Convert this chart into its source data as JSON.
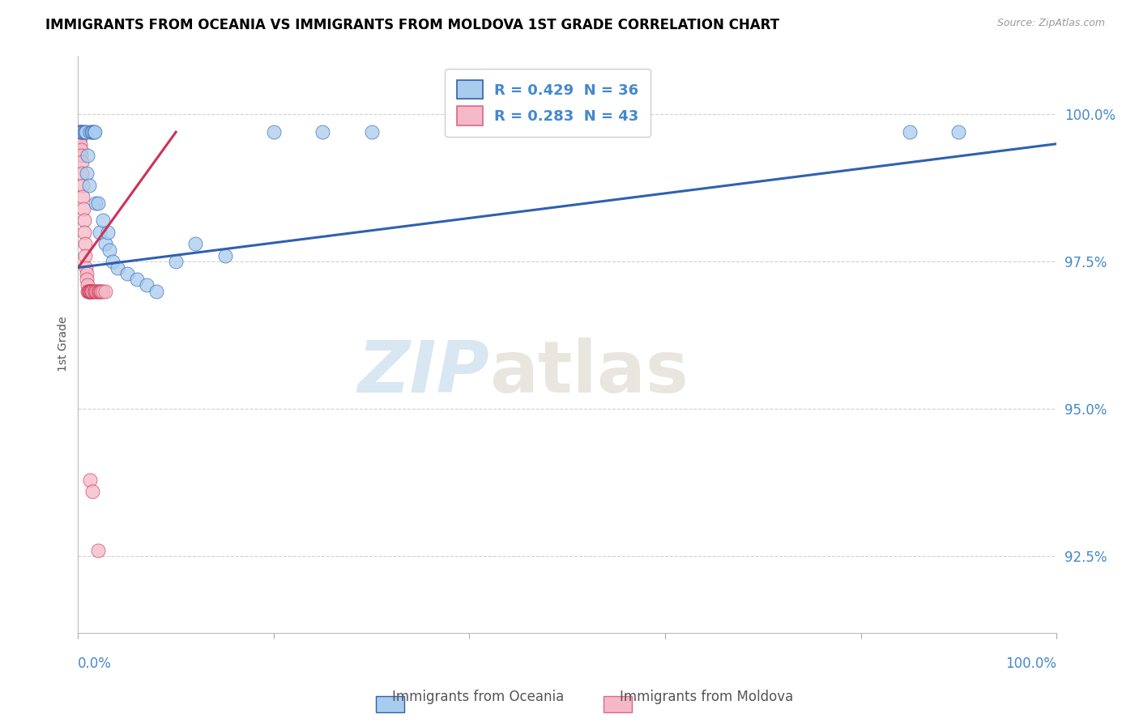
{
  "title": "IMMIGRANTS FROM OCEANIA VS IMMIGRANTS FROM MOLDOVA 1ST GRADE CORRELATION CHART",
  "source": "Source: ZipAtlas.com",
  "ylabel": "1st Grade",
  "legend_oceania": "Immigrants from Oceania",
  "legend_moldova": "Immigrants from Moldova",
  "R_oceania": 0.429,
  "N_oceania": 36,
  "R_moldova": 0.283,
  "N_moldova": 43,
  "color_oceania": "#a8ccee",
  "color_moldova": "#f5b8c8",
  "color_trendline_oceania": "#3060b0",
  "color_trendline_moldova": "#cc3355",
  "xmin": 0.0,
  "xmax": 100.0,
  "ymin": 91.2,
  "ymax": 101.0,
  "yticks": [
    92.5,
    95.0,
    97.5,
    100.0
  ],
  "ytick_labels": [
    "92.5%",
    "95.0%",
    "97.5%",
    "100.0%"
  ],
  "watermark_zip": "ZIP",
  "watermark_atlas": "atlas",
  "oceania_x": [
    0.2,
    0.3,
    0.4,
    0.5,
    0.6,
    0.7,
    0.8,
    0.9,
    1.0,
    1.1,
    1.2,
    1.4,
    1.5,
    1.6,
    1.7,
    1.8,
    2.0,
    2.2,
    2.5,
    2.8,
    3.0,
    3.2,
    3.5,
    4.0,
    5.0,
    6.0,
    7.0,
    8.0,
    10.0,
    12.0,
    15.0,
    20.0,
    25.0,
    30.0,
    85.0,
    90.0
  ],
  "oceania_y": [
    99.7,
    99.7,
    99.7,
    99.7,
    99.7,
    99.7,
    99.7,
    99.0,
    99.3,
    98.8,
    99.7,
    99.7,
    99.7,
    99.7,
    99.7,
    98.5,
    98.5,
    98.0,
    98.2,
    97.8,
    98.0,
    97.7,
    97.5,
    97.4,
    97.3,
    97.2,
    97.1,
    97.0,
    97.5,
    97.8,
    97.6,
    99.7,
    99.7,
    99.7,
    99.7,
    99.7
  ],
  "moldova_x": [
    0.1,
    0.15,
    0.2,
    0.25,
    0.3,
    0.3,
    0.35,
    0.4,
    0.45,
    0.5,
    0.55,
    0.6,
    0.65,
    0.7,
    0.75,
    0.8,
    0.85,
    0.9,
    0.95,
    1.0,
    1.05,
    1.1,
    1.15,
    1.2,
    1.25,
    1.3,
    1.35,
    1.4,
    1.5,
    1.6,
    1.7,
    1.8,
    1.9,
    2.0,
    2.1,
    2.2,
    2.3,
    2.4,
    2.5,
    2.8,
    1.2,
    1.5,
    2.0
  ],
  "moldova_y": [
    99.7,
    99.7,
    99.6,
    99.5,
    99.4,
    99.3,
    99.2,
    99.0,
    98.8,
    98.6,
    98.4,
    98.2,
    98.0,
    97.8,
    97.6,
    97.4,
    97.3,
    97.2,
    97.1,
    97.0,
    97.0,
    97.0,
    97.0,
    97.0,
    97.0,
    97.0,
    97.0,
    97.0,
    97.0,
    97.0,
    97.0,
    97.0,
    97.0,
    97.0,
    97.0,
    97.0,
    97.0,
    97.0,
    97.0,
    97.0,
    93.8,
    93.6,
    92.6
  ],
  "trendline_oceania_x0": 0.0,
  "trendline_oceania_y0": 97.4,
  "trendline_oceania_x1": 100.0,
  "trendline_oceania_y1": 99.5,
  "trendline_moldova_x0": 0.0,
  "trendline_moldova_y0": 97.4,
  "trendline_moldova_x1": 10.0,
  "trendline_moldova_y1": 99.7
}
